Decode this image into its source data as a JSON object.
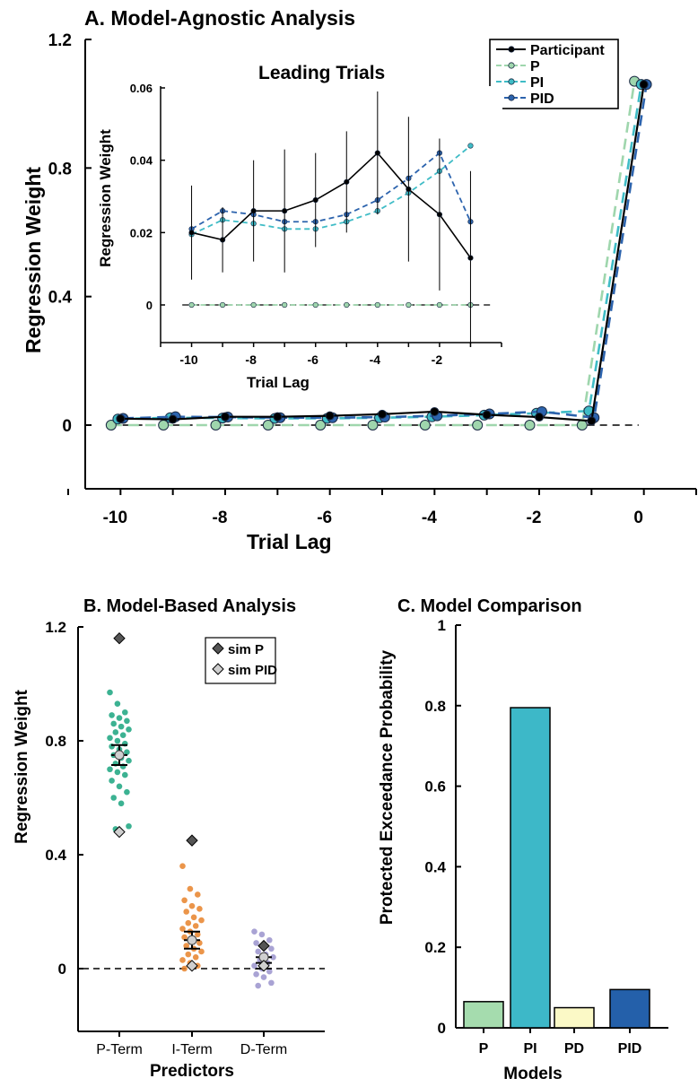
{
  "chart_data": [
    {
      "id": "A-main",
      "type": "line",
      "title": "A. Model-Agnostic Analysis",
      "xlabel": "Trial Lag",
      "ylabel": "Regression Weight",
      "xlim": [
        -11,
        1
      ],
      "ylim": [
        -0.2,
        1.2
      ],
      "xticks": [
        -10,
        -8,
        -6,
        -4,
        -2,
        0
      ],
      "yticks": [
        0,
        0.4,
        0.8,
        1.2
      ],
      "ytick_labels": [
        "0",
        "0.4",
        "0.8",
        "1.2"
      ],
      "reference_line": 0,
      "legend": [
        "Participant",
        "P",
        "PI",
        "PID"
      ],
      "legend_position": "top-right",
      "series": [
        {
          "name": "Participant",
          "color": "#000000",
          "dash": false,
          "x": [
            -10,
            -9,
            -8,
            -7,
            -6,
            -5,
            -4,
            -3,
            -2,
            -1,
            0
          ],
          "y": [
            0.02,
            0.018,
            0.026,
            0.026,
            0.029,
            0.034,
            0.042,
            0.032,
            0.025,
            0.013,
            1.06
          ]
        },
        {
          "name": "P",
          "color": "#9fd6ad",
          "dash": true,
          "x": [
            -10,
            -9,
            -8,
            -7,
            -6,
            -5,
            -4,
            -3,
            -2,
            -1,
            0
          ],
          "y": [
            0,
            0,
            0,
            0,
            0,
            0,
            0,
            0,
            0,
            0,
            1.07
          ]
        },
        {
          "name": "PI",
          "color": "#3fbcc6",
          "dash": true,
          "x": [
            -10,
            -9,
            -8,
            -7,
            -6,
            -5,
            -4,
            -3,
            -2,
            -1,
            0
          ],
          "y": [
            0.019,
            0.023,
            0.022,
            0.021,
            0.021,
            0.023,
            0.026,
            0.031,
            0.037,
            0.044,
            1.06
          ]
        },
        {
          "name": "PID",
          "color": "#2c63ad",
          "dash": true,
          "x": [
            -10,
            -9,
            -8,
            -7,
            -6,
            -5,
            -4,
            -3,
            -2,
            -1,
            0
          ],
          "y": [
            0.021,
            0.026,
            0.025,
            0.023,
            0.023,
            0.025,
            0.029,
            0.035,
            0.042,
            0.023,
            1.06
          ]
        }
      ]
    },
    {
      "id": "A-inset",
      "type": "line",
      "title": "Leading Trials",
      "xlabel": "Trial Lag",
      "ylabel": "Regression Weight",
      "xlim": [
        -11,
        0
      ],
      "ylim": [
        -0.01,
        0.06
      ],
      "xticks": [
        -10,
        -8,
        -6,
        -4,
        -2
      ],
      "yticks": [
        0,
        0.02,
        0.04,
        0.06
      ],
      "ytick_labels": [
        "0",
        "0.02",
        "0.04",
        "0.06"
      ],
      "reference_line": 0,
      "series": [
        {
          "name": "Participant",
          "color": "#000000",
          "dash": false,
          "x": [
            -10,
            -9,
            -8,
            -7,
            -6,
            -5,
            -4,
            -3,
            -2,
            -1
          ],
          "y": [
            0.02,
            0.018,
            0.026,
            0.026,
            0.029,
            0.034,
            0.042,
            0.032,
            0.025,
            0.013
          ],
          "err": [
            0.013,
            0.009,
            0.014,
            0.017,
            0.013,
            0.014,
            0.017,
            0.02,
            0.021,
            0.024
          ]
        },
        {
          "name": "P",
          "color": "#9fd6ad",
          "dash": true,
          "x": [
            -10,
            -9,
            -8,
            -7,
            -6,
            -5,
            -4,
            -3,
            -2,
            -1
          ],
          "y": [
            0,
            0,
            0,
            0,
            0,
            0,
            0,
            0,
            0,
            0
          ]
        },
        {
          "name": "PI",
          "color": "#3fbcc6",
          "dash": true,
          "x": [
            -10,
            -9,
            -8,
            -7,
            -6,
            -5,
            -4,
            -3,
            -2,
            -1
          ],
          "y": [
            0.0195,
            0.0235,
            0.0225,
            0.021,
            0.021,
            0.023,
            0.026,
            0.031,
            0.037,
            0.044
          ]
        },
        {
          "name": "PID",
          "color": "#2c63ad",
          "dash": true,
          "x": [
            -10,
            -9,
            -8,
            -7,
            -6,
            -5,
            -4,
            -3,
            -2,
            -1
          ],
          "y": [
            0.021,
            0.026,
            0.025,
            0.023,
            0.023,
            0.025,
            0.029,
            0.035,
            0.042,
            0.023
          ]
        }
      ]
    },
    {
      "id": "B",
      "type": "scatter",
      "title": "B. Model-Based Analysis",
      "xlabel": "Predictors",
      "ylabel": "Regression Weight",
      "categories": [
        "P-Term",
        "I-Term",
        "D-Term"
      ],
      "ylim": [
        -0.2,
        1.2
      ],
      "yticks": [
        0,
        0.4,
        0.8,
        1.2
      ],
      "ytick_labels": [
        "0",
        "0.4",
        "0.8",
        "1.2"
      ],
      "reference_line": 0,
      "legend": [
        "sim P",
        "sim PID"
      ],
      "legend_position": "top-right",
      "groups": [
        {
          "category": "P-Term",
          "color": "#1aa57f",
          "mean": 0.75,
          "sem": 0.035,
          "points": [
            0.97,
            0.93,
            0.9,
            0.89,
            0.88,
            0.87,
            0.86,
            0.85,
            0.84,
            0.83,
            0.82,
            0.81,
            0.8,
            0.79,
            0.78,
            0.77,
            0.76,
            0.75,
            0.74,
            0.73,
            0.72,
            0.71,
            0.7,
            0.69,
            0.68,
            0.66,
            0.64,
            0.62,
            0.6,
            0.58,
            0.5,
            0.49
          ],
          "sim_P": 1.16,
          "sim_PID": 0.48,
          "sim_extra": 0.75
        },
        {
          "category": "I-Term",
          "color": "#e8822a",
          "mean": 0.1,
          "sem": 0.03,
          "points": [
            0.36,
            0.28,
            0.26,
            0.24,
            0.22,
            0.21,
            0.2,
            0.18,
            0.17,
            0.16,
            0.15,
            0.14,
            0.13,
            0.12,
            0.11,
            0.1,
            0.09,
            0.08,
            0.07,
            0.06,
            0.05,
            0.04,
            0.03,
            0.02,
            0.01,
            0.0
          ],
          "sim_P": 0.45,
          "sim_PID": 0.01,
          "sim_extra": 0.1
        },
        {
          "category": "D-Term",
          "color": "#9a93cc",
          "mean": 0.02,
          "sem": 0.02,
          "points": [
            0.13,
            0.12,
            0.1,
            0.09,
            0.08,
            0.07,
            0.06,
            0.05,
            0.04,
            0.03,
            0.02,
            0.01,
            0.0,
            -0.01,
            -0.02,
            -0.03,
            -0.05,
            -0.06
          ],
          "sim_P": 0.08,
          "sim_PID": 0.01,
          "sim_extra": 0.04
        }
      ]
    },
    {
      "id": "C",
      "type": "bar",
      "title": "C. Model Comparison",
      "xlabel": "Models",
      "ylabel": "Protected Exceedance Probability",
      "categories": [
        "P",
        "PI",
        "PD",
        "PID"
      ],
      "values": [
        0.065,
        0.795,
        0.05,
        0.095
      ],
      "colors": [
        "#a5dcae",
        "#3db8c8",
        "#fbf9c6",
        "#2460aa"
      ],
      "ylim": [
        0,
        1
      ],
      "yticks": [
        0,
        0.2,
        0.4,
        0.6,
        0.8,
        1
      ],
      "ytick_labels": [
        "0",
        "0.2",
        "0.4",
        "0.6",
        "0.8",
        "1"
      ]
    }
  ]
}
